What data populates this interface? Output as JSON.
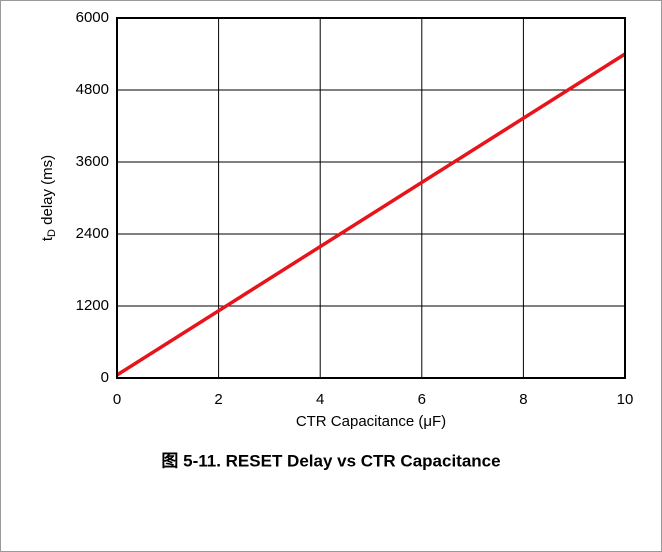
{
  "chart_data": {
    "type": "line",
    "caption": "图 5-11. RESET Delay vs CTR Capacitance",
    "x_label": "CTR Capacitance (μF)",
    "y_label": {
      "main": "t",
      "sub": "D",
      "rest": " delay (ms)"
    },
    "x": [
      0,
      10
    ],
    "series": [
      {
        "name": "tD",
        "color": "#e8141b",
        "values": [
          50,
          5400
        ]
      }
    ],
    "xlim": [
      0,
      10
    ],
    "xticks": [
      0,
      2,
      4,
      6,
      8,
      10
    ],
    "ylim": [
      0,
      6000
    ],
    "yticks": [
      0,
      1200,
      2400,
      3600,
      4800,
      6000
    ],
    "grid": true
  }
}
